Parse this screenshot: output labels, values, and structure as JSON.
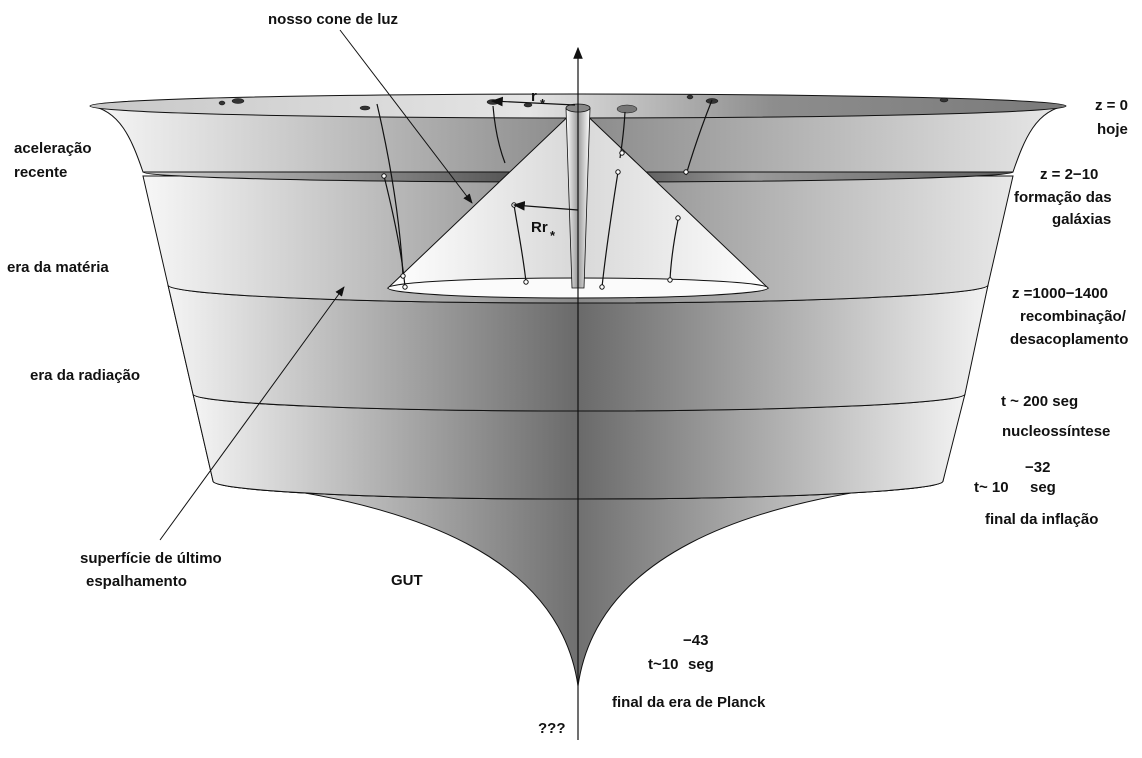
{
  "labels": {
    "light_cone": "nosso cone de luz",
    "r_star": "r",
    "rr_star": "Rr",
    "star_sub": "*",
    "z0": "z  = 0",
    "hoje": "hoje",
    "acel1": "aceleração",
    "acel2": "recente",
    "z2_10": "z = 2−10",
    "form1": "formação das",
    "form2": "galáxias",
    "era_materia": "era da matéria",
    "z1000": "z =1000−1400",
    "recomb": "recombinação/",
    "desacop": "desacoplamento",
    "era_radiacao": "era da radiação",
    "t200": "t ~ 200 seg",
    "nucleo": "nucleossíntese",
    "exp32": "−32",
    "t10": "t~ 10",
    "seg1": "seg",
    "final_infl": "final da inflação",
    "sup1": "superfície de último",
    "sup2": "espalhamento",
    "gut": "GUT",
    "exp43": "−43",
    "t10b": "t~10",
    "seg2": "seg",
    "planck": "final da era de Planck",
    "qqq": "???"
  },
  "colors": {
    "ink": "#111111",
    "surface_edge": "#cfcfcf",
    "surface_center": "#6e6e6e",
    "cone_light": "#f2f2f2",
    "band_dark": "#505050"
  }
}
